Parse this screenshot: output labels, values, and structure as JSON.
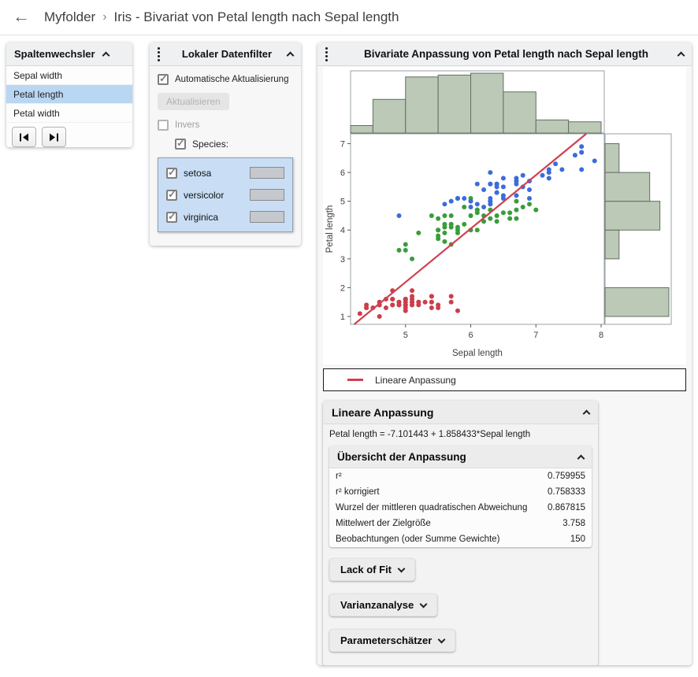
{
  "breadcrumb": {
    "folder": "Myfolder",
    "separator": "›",
    "title": "Iris - Bivariat von Petal length nach Sepal length"
  },
  "column_switcher": {
    "title": "Spaltenwechsler",
    "items": [
      {
        "label": "Sepal width",
        "selected": false
      },
      {
        "label": "Petal length",
        "selected": true
      },
      {
        "label": "Petal width",
        "selected": false
      }
    ]
  },
  "data_filter": {
    "title": "Lokaler Datenfilter",
    "auto_update_label": "Automatische Aktualisierung",
    "auto_update_checked": true,
    "update_button_label": "Aktualisieren",
    "invers_label": "Invers",
    "invers_checked": false,
    "species_label": "Species:",
    "species_checked": true,
    "species": [
      {
        "label": "setosa",
        "checked": true
      },
      {
        "label": "versicolor",
        "checked": true
      },
      {
        "label": "virginica",
        "checked": true
      }
    ]
  },
  "bivariate": {
    "title": "Bivariate Anpassung von Petal length nach Sepal length",
    "legend_label": "Lineare Anpassung",
    "linear_fit": {
      "title": "Lineare Anpassung",
      "equation": "Petal length = -7.101443 + 1.858433*Sepal length",
      "summary": {
        "title": "Übersicht der Anpassung",
        "rows": [
          {
            "label": "r²",
            "value": "0.759955"
          },
          {
            "label": "r² korrigiert",
            "value": "0.758333"
          },
          {
            "label": "Wurzel der mittleren quadratischen Abweichung",
            "value": "0.867815"
          },
          {
            "label": "Mittelwert der Zielgröße",
            "value": "3.758"
          },
          {
            "label": "Beobachtungen (oder Summe Gewichte)",
            "value": "150"
          }
        ]
      },
      "collapsed_sections": [
        {
          "label": "Lack of Fit"
        },
        {
          "label": "Varianzanalyse"
        },
        {
          "label": "Parameterschätzer"
        }
      ]
    }
  },
  "chart_data": {
    "type": "scatter",
    "title": "Bivariate Anpassung von Petal length nach Sepal length",
    "xlabel": "Sepal length",
    "ylabel": "Petal length",
    "xlim": [
      4.157,
      8.048
    ],
    "ylim": [
      0.727,
      7.341
    ],
    "xticks": [
      5,
      6,
      7,
      8
    ],
    "yticks": [
      1,
      2,
      3,
      4,
      5,
      6,
      7
    ],
    "grid": false,
    "legend_position": "below",
    "series": [
      {
        "name": "setosa",
        "color": "#cb3e4c",
        "points": [
          [
            5.1,
            1.4
          ],
          [
            4.9,
            1.4
          ],
          [
            4.7,
            1.3
          ],
          [
            4.6,
            1.5
          ],
          [
            5.0,
            1.4
          ],
          [
            5.4,
            1.7
          ],
          [
            4.6,
            1.4
          ],
          [
            5.0,
            1.5
          ],
          [
            4.4,
            1.4
          ],
          [
            4.9,
            1.5
          ],
          [
            5.4,
            1.5
          ],
          [
            4.8,
            1.6
          ],
          [
            4.8,
            1.4
          ],
          [
            4.3,
            1.1
          ],
          [
            5.8,
            1.2
          ],
          [
            5.7,
            1.5
          ],
          [
            5.4,
            1.3
          ],
          [
            5.1,
            1.4
          ],
          [
            5.7,
            1.7
          ],
          [
            5.1,
            1.5
          ],
          [
            5.4,
            1.7
          ],
          [
            5.1,
            1.5
          ],
          [
            4.6,
            1.0
          ],
          [
            5.1,
            1.7
          ],
          [
            4.8,
            1.9
          ],
          [
            5.0,
            1.6
          ],
          [
            5.0,
            1.6
          ],
          [
            5.2,
            1.5
          ],
          [
            5.2,
            1.4
          ],
          [
            4.7,
            1.6
          ],
          [
            4.8,
            1.6
          ],
          [
            5.4,
            1.5
          ],
          [
            5.2,
            1.5
          ],
          [
            5.5,
            1.4
          ],
          [
            4.9,
            1.5
          ],
          [
            5.0,
            1.2
          ],
          [
            5.5,
            1.3
          ],
          [
            4.9,
            1.4
          ],
          [
            4.4,
            1.3
          ],
          [
            5.1,
            1.5
          ],
          [
            5.0,
            1.3
          ],
          [
            4.5,
            1.3
          ],
          [
            4.4,
            1.3
          ],
          [
            5.0,
            1.6
          ],
          [
            5.1,
            1.9
          ],
          [
            4.8,
            1.4
          ],
          [
            5.1,
            1.6
          ],
          [
            4.6,
            1.4
          ],
          [
            5.3,
            1.5
          ],
          [
            5.0,
            1.4
          ]
        ]
      },
      {
        "name": "versicolor",
        "color": "#3a9d3a",
        "points": [
          [
            7.0,
            4.7
          ],
          [
            6.4,
            4.5
          ],
          [
            6.9,
            4.9
          ],
          [
            5.5,
            4.0
          ],
          [
            6.5,
            4.6
          ],
          [
            5.7,
            4.5
          ],
          [
            6.3,
            4.7
          ],
          [
            4.9,
            3.3
          ],
          [
            6.6,
            4.6
          ],
          [
            5.2,
            3.9
          ],
          [
            5.0,
            3.5
          ],
          [
            5.9,
            4.2
          ],
          [
            6.0,
            4.0
          ],
          [
            6.1,
            4.7
          ],
          [
            5.6,
            3.6
          ],
          [
            6.7,
            4.4
          ],
          [
            5.6,
            4.5
          ],
          [
            5.8,
            4.1
          ],
          [
            6.2,
            4.5
          ],
          [
            5.6,
            3.9
          ],
          [
            5.9,
            4.8
          ],
          [
            6.1,
            4.0
          ],
          [
            6.3,
            4.9
          ],
          [
            6.1,
            4.7
          ],
          [
            6.4,
            4.3
          ],
          [
            6.6,
            4.4
          ],
          [
            6.8,
            4.8
          ],
          [
            6.7,
            5.0
          ],
          [
            6.0,
            4.5
          ],
          [
            5.7,
            3.5
          ],
          [
            5.5,
            3.8
          ],
          [
            5.5,
            3.7
          ],
          [
            5.8,
            3.9
          ],
          [
            6.0,
            5.1
          ],
          [
            5.4,
            4.5
          ],
          [
            6.0,
            4.5
          ],
          [
            6.7,
            4.7
          ],
          [
            6.3,
            4.4
          ],
          [
            5.6,
            4.1
          ],
          [
            5.5,
            4.0
          ],
          [
            5.5,
            4.4
          ],
          [
            6.1,
            4.6
          ],
          [
            5.8,
            4.0
          ],
          [
            5.0,
            3.3
          ],
          [
            5.6,
            4.2
          ],
          [
            5.7,
            4.2
          ],
          [
            5.7,
            4.2
          ],
          [
            6.2,
            4.3
          ],
          [
            5.1,
            3.0
          ],
          [
            5.7,
            4.1
          ]
        ]
      },
      {
        "name": "virginica",
        "color": "#3b6cdb",
        "points": [
          [
            6.3,
            6.0
          ],
          [
            5.8,
            5.1
          ],
          [
            7.1,
            5.9
          ],
          [
            6.3,
            5.6
          ],
          [
            6.5,
            5.8
          ],
          [
            7.6,
            6.6
          ],
          [
            4.9,
            4.5
          ],
          [
            7.3,
            6.3
          ],
          [
            6.7,
            5.8
          ],
          [
            7.2,
            6.1
          ],
          [
            6.5,
            5.1
          ],
          [
            6.4,
            5.3
          ],
          [
            6.8,
            5.5
          ],
          [
            5.7,
            5.0
          ],
          [
            5.8,
            5.1
          ],
          [
            6.4,
            5.3
          ],
          [
            6.5,
            5.5
          ],
          [
            7.7,
            6.7
          ],
          [
            7.7,
            6.9
          ],
          [
            6.0,
            5.0
          ],
          [
            6.9,
            5.7
          ],
          [
            5.6,
            4.9
          ],
          [
            7.7,
            6.7
          ],
          [
            6.3,
            4.9
          ],
          [
            6.7,
            5.7
          ],
          [
            7.2,
            6.0
          ],
          [
            6.2,
            4.8
          ],
          [
            6.1,
            4.9
          ],
          [
            6.4,
            5.6
          ],
          [
            7.2,
            5.8
          ],
          [
            7.4,
            6.1
          ],
          [
            7.9,
            6.4
          ],
          [
            6.4,
            5.6
          ],
          [
            6.3,
            5.1
          ],
          [
            6.1,
            5.6
          ],
          [
            7.7,
            6.1
          ],
          [
            6.3,
            5.6
          ],
          [
            6.4,
            5.5
          ],
          [
            6.0,
            4.8
          ],
          [
            6.9,
            5.4
          ],
          [
            6.7,
            5.6
          ],
          [
            6.9,
            5.1
          ],
          [
            5.8,
            5.1
          ],
          [
            6.8,
            5.9
          ],
          [
            6.7,
            5.7
          ],
          [
            6.7,
            5.2
          ],
          [
            6.3,
            5.0
          ],
          [
            6.5,
            5.2
          ],
          [
            6.2,
            5.4
          ],
          [
            5.9,
            5.1
          ]
        ]
      }
    ],
    "regression": {
      "label": "Lineare Anpassung",
      "intercept": -7.101443,
      "slope": 1.858433,
      "color": "#d0404f"
    },
    "x_histogram": {
      "variable": "Sepal length",
      "bin_start": 4.0,
      "bin_width": 0.5,
      "counts": [
        4,
        18,
        30,
        31,
        32,
        22,
        7,
        6
      ],
      "fill": "#bdc9b7",
      "stroke": "#5f6f5f"
    },
    "y_histogram": {
      "variable": "Petal length",
      "bin_start": 1.0,
      "bin_width": 1.0,
      "counts": [
        50,
        0,
        11,
        43,
        35,
        11
      ],
      "fill": "#bdc9b7",
      "stroke": "#5f6f5f"
    }
  }
}
